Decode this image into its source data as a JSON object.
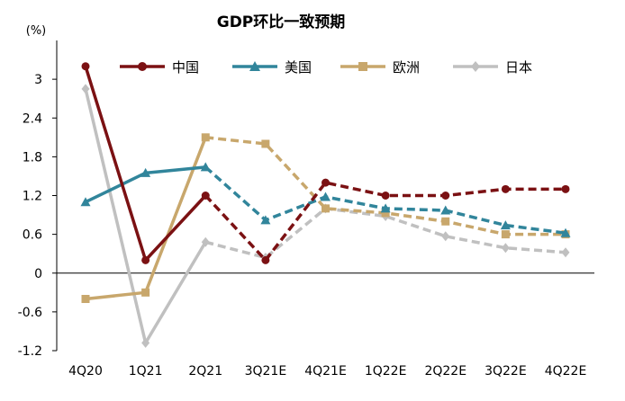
{
  "chart_data": {
    "type": "line",
    "title": "GDP环比一致预期",
    "unit": "(%)",
    "categories": [
      "4Q20",
      "1Q21",
      "2Q21",
      "3Q21E",
      "4Q21E",
      "1Q22E",
      "2Q22E",
      "3Q22E",
      "4Q22E"
    ],
    "ylim": [
      -1.2,
      3.6
    ],
    "yticks": [
      "3",
      "2.4",
      "1.8",
      "1.2",
      "0.6",
      "0",
      "-0.6",
      "-1.2"
    ],
    "ytick_values": [
      3,
      2.4,
      1.8,
      1.2,
      0.6,
      0,
      -0.6,
      -1.2
    ],
    "actual_through_index": 2,
    "legend_position": "top",
    "series": [
      {
        "name": "中国",
        "color": "#7b1113",
        "marker": "circle",
        "values": [
          3.2,
          0.2,
          1.2,
          0.2,
          1.4,
          1.2,
          1.2,
          1.3,
          1.3
        ]
      },
      {
        "name": "美国",
        "color": "#31859b",
        "marker": "triangle",
        "values": [
          1.1,
          1.55,
          1.64,
          0.82,
          1.18,
          1.0,
          0.97,
          0.74,
          0.62
        ]
      },
      {
        "name": "欧洲",
        "color": "#c8a76c",
        "marker": "square",
        "values": [
          -0.4,
          -0.3,
          2.1,
          2.0,
          1.0,
          0.93,
          0.8,
          0.6,
          0.6
        ]
      },
      {
        "name": "日本",
        "color": "#c0c0c0",
        "marker": "diamond",
        "values": [
          2.85,
          -1.08,
          0.48,
          0.24,
          1.0,
          0.88,
          0.57,
          0.39,
          0.32
        ]
      }
    ]
  }
}
